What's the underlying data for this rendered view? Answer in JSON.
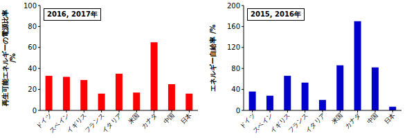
{
  "chart_data": [
    {
      "type": "bar",
      "title": "2016, 2017年",
      "y_label": "再生可能エネルギーの電源比率 /%",
      "categories": [
        "ドイツ",
        "スペイン",
        "イギリス",
        "フランス",
        "イタリア",
        "米国",
        "カナダ",
        "中国",
        "日本"
      ],
      "values": [
        33,
        32,
        29,
        16,
        35,
        17,
        65,
        25,
        16
      ],
      "color": "#ff0000",
      "ylim": [
        0,
        100
      ],
      "yticks": [
        0,
        20,
        40,
        60,
        80,
        100
      ]
    },
    {
      "type": "bar",
      "title": "2015, 2016年",
      "y_label": "エネルギー自給率 /%",
      "categories": [
        "ドイツ",
        "スペイン",
        "イギリス",
        "フランス",
        "イタリア",
        "米国",
        "カナダ",
        "中国",
        "日本"
      ],
      "values": [
        36,
        28,
        66,
        53,
        20,
        86,
        170,
        82,
        7
      ],
      "color": "#0000cc",
      "ylim": [
        0,
        200
      ],
      "yticks": [
        0,
        40,
        80,
        120,
        160,
        200
      ]
    }
  ]
}
